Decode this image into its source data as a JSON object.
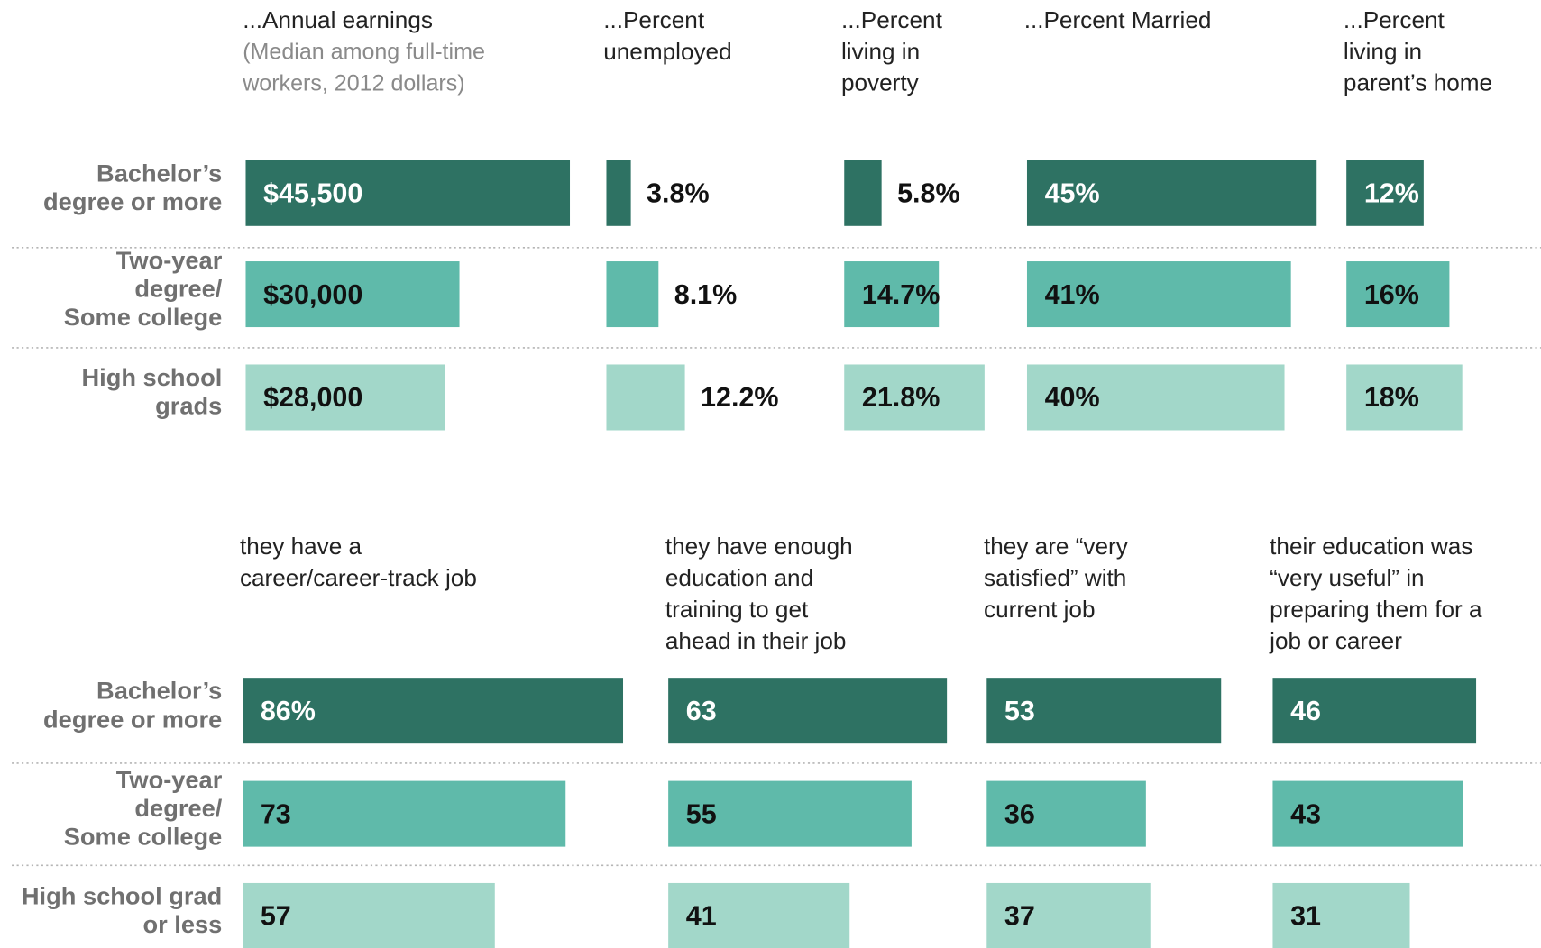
{
  "chart_data": [
    {
      "type": "bar",
      "categories": [
        [
          "Bachelor’s",
          "degree or more"
        ],
        [
          "Two-year",
          "degree/",
          "Some college"
        ],
        [
          "High school",
          "grads"
        ]
      ],
      "colors": [
        "#2e7263",
        "#5fbaaa",
        "#a2d7c9"
      ],
      "series": [
        {
          "name": [
            "...Annual earnings"
          ],
          "subtitle": [
            "(Median among full-time",
            "workers, 2012 dollars)"
          ],
          "values": [
            45500,
            30000,
            28000
          ],
          "value_labels": [
            "$45,500",
            "$30,000",
            "$28,000"
          ]
        },
        {
          "name": [
            "...Percent",
            "unemployed"
          ],
          "values": [
            3.8,
            8.1,
            12.2
          ],
          "value_labels": [
            "3.8%",
            "8.1%",
            "12.2%"
          ]
        },
        {
          "name": [
            "...Percent",
            "living in",
            "poverty"
          ],
          "values": [
            5.8,
            14.7,
            21.8
          ],
          "value_labels": [
            "5.8%",
            "14.7%",
            "21.8%"
          ]
        },
        {
          "name": [
            "...Percent Married"
          ],
          "values": [
            45,
            41,
            40
          ],
          "value_labels": [
            "45%",
            "41%",
            "40%"
          ]
        },
        {
          "name": [
            "...Percent",
            "living in",
            "parent’s home"
          ],
          "values": [
            12,
            16,
            18
          ],
          "value_labels": [
            "12%",
            "16%",
            "18%"
          ]
        }
      ]
    },
    {
      "type": "bar",
      "categories": [
        [
          "Bachelor’s",
          "degree or more"
        ],
        [
          "Two-year",
          "degree/",
          "Some college"
        ],
        [
          "High school grad",
          "or less"
        ]
      ],
      "colors": [
        "#2e7263",
        "#5fbaaa",
        "#a2d7c9"
      ],
      "series": [
        {
          "name": [
            "they have a",
            "career/career-track job"
          ],
          "values": [
            86,
            73,
            57
          ],
          "value_labels": [
            "86%",
            "73",
            "57"
          ]
        },
        {
          "name": [
            "they have enough",
            "education and",
            "training to get",
            "ahead in their job"
          ],
          "values": [
            63,
            55,
            41
          ]
        },
        {
          "name": [
            "they are “very",
            "satisfied” with",
            "current job"
          ],
          "values": [
            53,
            36,
            37
          ]
        },
        {
          "name": [
            "their education was",
            "“very useful” in",
            "preparing them for a",
            "job or career"
          ],
          "values": [
            46,
            43,
            31
          ]
        }
      ]
    }
  ]
}
